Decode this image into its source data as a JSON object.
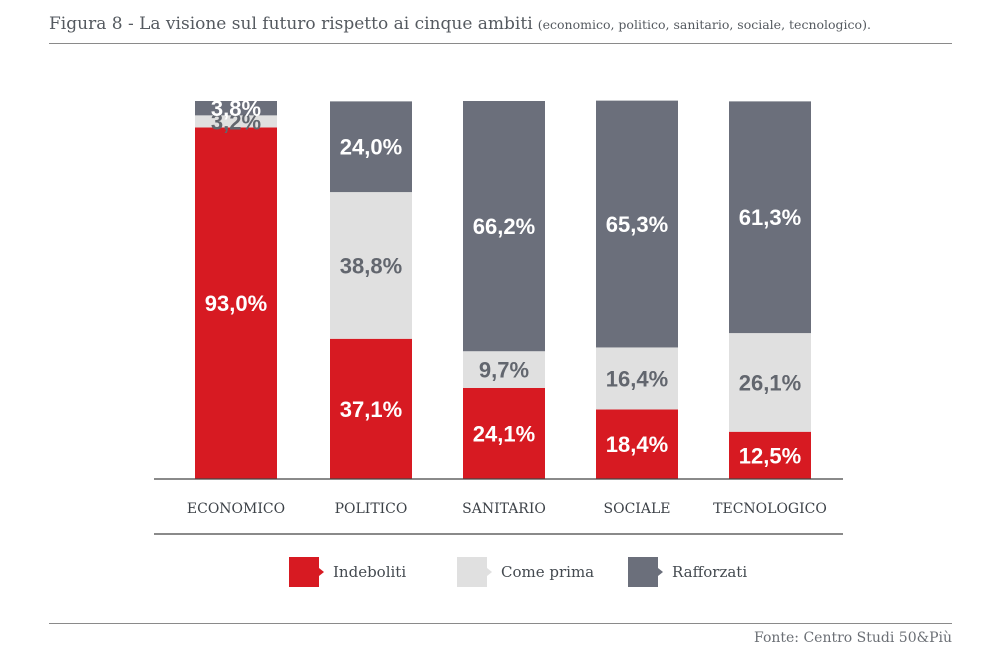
{
  "title": {
    "main": "Figura 8 - La visione sul futuro rispetto ai cinque ambiti",
    "sub": "(economico, politico, sanitario, sociale, tecnologico)."
  },
  "source": "Fonte: Centro Studi 50&Più",
  "colors": {
    "indeboliti": "#d71a22",
    "come_prima": "#e0e0e0",
    "rafforzati": "#6b6f7b",
    "label_light": "#ffffff",
    "label_dark": "#62666e"
  },
  "legend": [
    {
      "label": "Indeboliti",
      "color": "#d71a22"
    },
    {
      "label": "Come prima",
      "color": "#e0e0e0"
    },
    {
      "label": "Rafforzati",
      "color": "#6b6f7b"
    }
  ],
  "chart_data": {
    "type": "bar",
    "stacked": true,
    "title": "Figura 8 - La visione sul futuro rispetto ai cinque ambiti",
    "categories": [
      "ECONOMICO",
      "POLITICO",
      "SANITARIO",
      "SOCIALE",
      "TECNOLOGICO"
    ],
    "ylim": [
      0,
      100
    ],
    "grid": false,
    "legend_position": "bottom",
    "series": [
      {
        "name": "Indeboliti",
        "values": [
          93.0,
          37.1,
          24.1,
          18.4,
          12.5
        ],
        "labels": [
          "93,0%",
          "37,1%",
          "24,1%",
          "18,4%",
          "12,5%"
        ]
      },
      {
        "name": "Come prima",
        "values": [
          3.2,
          38.8,
          9.7,
          16.4,
          26.1
        ],
        "labels": [
          "3,2%",
          "38,8%",
          "9,7%",
          "16,4%",
          "26,1%"
        ]
      },
      {
        "name": "Rafforzati",
        "values": [
          3.8,
          24.0,
          66.2,
          65.3,
          61.3
        ],
        "labels": [
          "3,8%",
          "24,0%",
          "66,2%",
          "65,3%",
          "61,3%"
        ]
      }
    ]
  }
}
